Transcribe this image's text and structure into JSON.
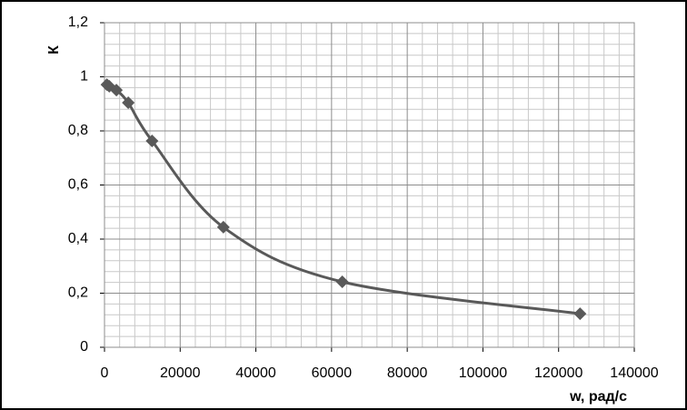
{
  "chart_data": {
    "type": "scatter",
    "x_label": "w, рад/с",
    "y_label": "К",
    "series": [
      {
        "name": "К",
        "color": "#595959",
        "x": [
          628,
          1257,
          3142,
          6283,
          12566,
          31416,
          62832,
          125664
        ],
        "values": [
          0.971,
          0.965,
          0.951,
          0.904,
          0.763,
          0.444,
          0.242,
          0.124
        ]
      }
    ],
    "smooth": true,
    "xlim": [
      0,
      140000
    ],
    "xticks": [
      0,
      20000,
      40000,
      60000,
      80000,
      100000,
      120000,
      140000
    ],
    "ylim": [
      0,
      1.2
    ],
    "yticks": [
      0,
      {
        "value": 0.2,
        "label": "0,2"
      },
      {
        "value": 0.4,
        "label": "0,4"
      },
      {
        "value": 0.6,
        "label": "0,6"
      },
      {
        "value": 0.8,
        "label": "0,8"
      },
      1,
      {
        "value": 1.2,
        "label": "1,2"
      }
    ],
    "grid": true,
    "minor_grid": true
  }
}
